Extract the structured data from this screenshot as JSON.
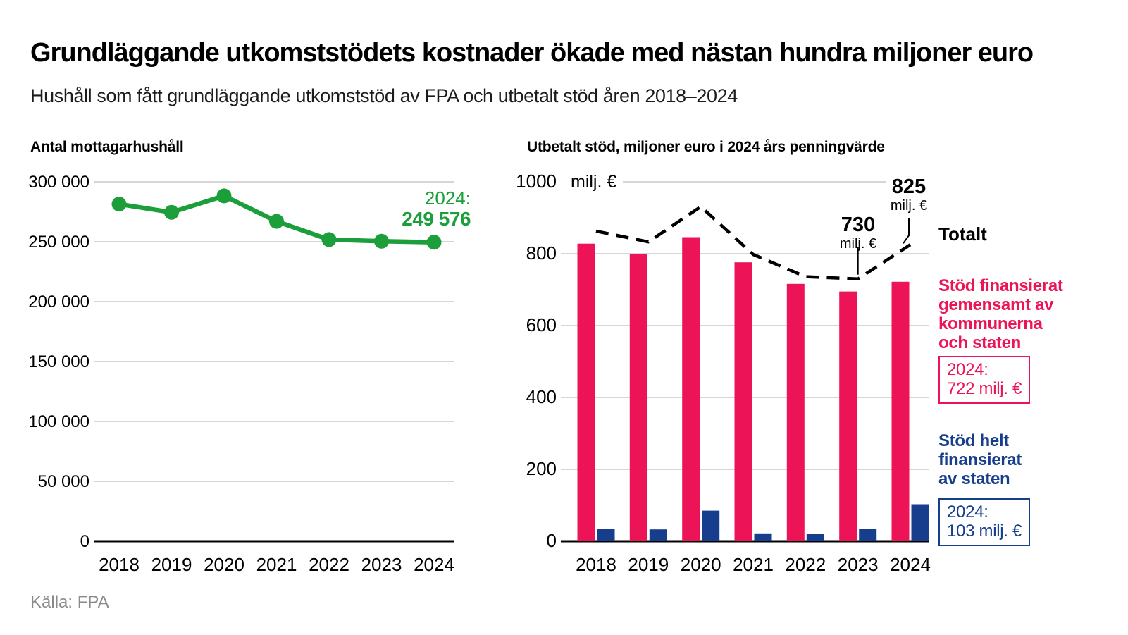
{
  "page": {
    "title": "Grundläggande utkomststödets kostnader ökade med nästan hundra miljoner euro",
    "subtitle": "Hushåll som fått grundläggande utkomststöd av FPA och utbetalt stöd åren 2018–2024",
    "source": "Källa: FPA"
  },
  "colors": {
    "green": "#1c9e3a",
    "pink": "#ec1457",
    "blue": "#163e8c",
    "grid": "#c9c9c9",
    "axis": "#000000",
    "leader": "#000000"
  },
  "chart_data": [
    {
      "type": "line",
      "title": "Antal mottagarhushåll",
      "x": [
        "2018",
        "2019",
        "2020",
        "2021",
        "2022",
        "2023",
        "2024"
      ],
      "series": [
        {
          "name": "Antal mottagarhushåll",
          "values": [
            281400,
            274500,
            288300,
            267000,
            251800,
            250400,
            249576
          ]
        }
      ],
      "ylim": [
        0,
        300000
      ],
      "y_tick_values": [
        0,
        50000,
        100000,
        150000,
        200000,
        250000,
        300000
      ],
      "y_tick_labels": [
        "0",
        "50 000",
        "100 000",
        "150 000",
        "200 000",
        "250 000",
        "300 000"
      ],
      "grid": true,
      "legend_position": "none",
      "annotation": {
        "label": "2024:",
        "value": "249 576"
      }
    },
    {
      "type": "bar",
      "title": "Utbetalt stöd, miljoner euro i 2024 års penningvärde",
      "x": [
        "2018",
        "2019",
        "2020",
        "2021",
        "2022",
        "2023",
        "2024"
      ],
      "series": [
        {
          "name": "Stöd finansierat gemensamt av kommunerna och staten",
          "type": "bar",
          "values": [
            828,
            800,
            846,
            776,
            716,
            695,
            722
          ]
        },
        {
          "name": "Stöd helt finansierat av staten",
          "type": "bar",
          "values": [
            35,
            33,
            85,
            22,
            20,
            35,
            103
          ]
        },
        {
          "name": "Totalt",
          "type": "dashed-line",
          "values": [
            863,
            833,
            931,
            798,
            736,
            730,
            825
          ]
        }
      ],
      "ylim": [
        0,
        1000
      ],
      "y_tick_values": [
        0,
        200,
        400,
        600,
        800,
        1000
      ],
      "y_tick_labels": [
        "0",
        "200",
        "400",
        "600",
        "800",
        "1000"
      ],
      "y_top_suffix": "milj. €",
      "grid": true,
      "legend_position": "right",
      "total_label": "Totalt",
      "annotations": [
        {
          "x": "2023",
          "value": "730",
          "unit": "milj. €"
        },
        {
          "x": "2024",
          "value": "825",
          "unit": "milj. €"
        }
      ],
      "legend": [
        {
          "lines": [
            "Stöd finansierat",
            "gemensamt av",
            "kommunerna",
            "och staten"
          ],
          "box": [
            "2024:",
            "722 milj. €"
          ]
        },
        {
          "lines": [
            "Stöd helt",
            "finansierat",
            "av staten"
          ],
          "box": [
            "2024:",
            "103 milj. €"
          ]
        }
      ]
    }
  ]
}
